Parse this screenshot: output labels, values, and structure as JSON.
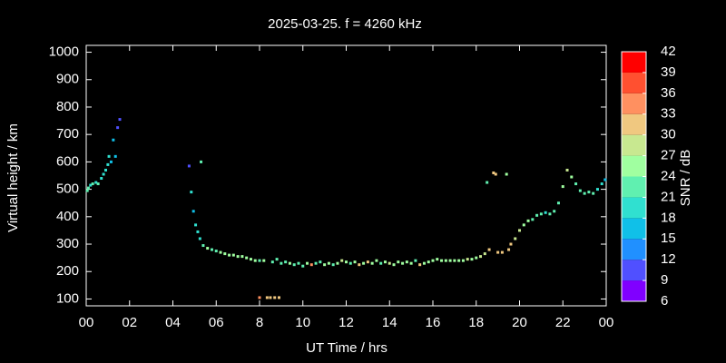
{
  "chart_data": {
    "type": "scatter",
    "title": "2025-03-25. f = 4260 kHz",
    "xlabel": "UT Time / hrs",
    "ylabel": "Virtual height / km",
    "colorbar_label": "SNR / dB",
    "xlim": [
      0,
      24
    ],
    "ylim": [
      75,
      1025
    ],
    "xticks": [
      {
        "value": 0,
        "label": "00"
      },
      {
        "value": 2,
        "label": "02"
      },
      {
        "value": 4,
        "label": "04"
      },
      {
        "value": 6,
        "label": "06"
      },
      8,
      10,
      12,
      14,
      16,
      18,
      20,
      22,
      {
        "value": 24,
        "label": "00"
      }
    ],
    "yticks": [
      100,
      200,
      300,
      400,
      500,
      600,
      700,
      800,
      900,
      1000
    ],
    "clim": [
      6,
      42
    ],
    "cticks": [
      6,
      9,
      12,
      15,
      18,
      21,
      24,
      27,
      30,
      33,
      36,
      39,
      42
    ],
    "colors": [
      "#8000ff",
      "#5050ff",
      "#2090ff",
      "#10c0e8",
      "#30e0d0",
      "#60f0b0",
      "#a0ffa0",
      "#c8e890",
      "#f0c880",
      "#ff9060",
      "#ff5030",
      "#ff0000"
    ],
    "series": [
      {
        "name": "SNR / dB",
        "x": [
          0.05,
          0.1,
          0.2,
          0.3,
          0.45,
          0.55,
          0.7,
          0.8,
          0.9,
          1.0,
          1.05,
          1.15,
          1.25,
          1.35,
          1.45,
          1.55,
          4.75,
          4.85,
          4.95,
          5.05,
          5.15,
          5.25,
          5.3,
          5.4,
          5.6,
          5.8,
          6.0,
          6.2,
          6.4,
          6.6,
          6.8,
          7.0,
          7.2,
          7.4,
          7.6,
          7.8,
          8.0,
          8.2,
          8.0,
          8.35,
          8.5,
          8.7,
          8.9,
          8.6,
          8.8,
          9.0,
          9.2,
          9.4,
          9.6,
          9.8,
          10.0,
          10.2,
          10.4,
          10.6,
          10.8,
          11.0,
          11.2,
          11.4,
          11.6,
          11.8,
          12.0,
          12.2,
          12.4,
          12.6,
          12.8,
          13.0,
          13.2,
          13.4,
          13.6,
          13.8,
          14.0,
          14.2,
          14.4,
          14.6,
          14.8,
          15.0,
          15.2,
          15.4,
          15.6,
          15.8,
          16.0,
          16.2,
          16.4,
          16.6,
          16.8,
          17.0,
          17.2,
          17.4,
          17.6,
          17.8,
          18.0,
          18.2,
          18.4,
          18.6,
          18.5,
          18.8,
          18.9,
          19.0,
          19.2,
          19.4,
          19.5,
          19.6,
          19.8,
          20.0,
          20.2,
          20.4,
          20.6,
          20.8,
          21.0,
          21.2,
          21.4,
          21.6,
          21.8,
          22.0,
          22.2,
          22.4,
          22.6,
          22.8,
          23.0,
          23.2,
          23.4,
          23.6,
          23.8,
          23.95
        ],
        "values": [
          495,
          505,
          515,
          520,
          525,
          520,
          540,
          555,
          570,
          590,
          620,
          600,
          680,
          620,
          725,
          755,
          585,
          490,
          420,
          370,
          345,
          320,
          600,
          295,
          285,
          280,
          275,
          270,
          265,
          260,
          260,
          255,
          255,
          250,
          245,
          240,
          240,
          240,
          105,
          105,
          105,
          105,
          105,
          235,
          245,
          230,
          235,
          230,
          225,
          230,
          220,
          230,
          225,
          230,
          235,
          225,
          230,
          225,
          230,
          240,
          235,
          230,
          235,
          225,
          230,
          235,
          230,
          240,
          230,
          235,
          230,
          225,
          235,
          230,
          235,
          230,
          240,
          225,
          230,
          235,
          240,
          245,
          240,
          240,
          240,
          240,
          240,
          240,
          245,
          245,
          250,
          255,
          265,
          280,
          525,
          560,
          555,
          270,
          270,
          555,
          280,
          300,
          320,
          350,
          370,
          385,
          390,
          405,
          410,
          415,
          410,
          420,
          450,
          510,
          570,
          545,
          520,
          495,
          485,
          490,
          485,
          500,
          520,
          535
        ],
        "snr": [
          21,
          21,
          20,
          21,
          20,
          21,
          20,
          20,
          18,
          19,
          18,
          17,
          16,
          16,
          11,
          10,
          10,
          20,
          17,
          20,
          20,
          20,
          22,
          23,
          24,
          23,
          22,
          24,
          25,
          24,
          25,
          26,
          25,
          24,
          25,
          24,
          23,
          25,
          33,
          32,
          31,
          30,
          31,
          23,
          22,
          23,
          22,
          24,
          23,
          22,
          23,
          24,
          33,
          22,
          23,
          24,
          25,
          23,
          24,
          27,
          25,
          23,
          24,
          31,
          25,
          32,
          24,
          25,
          23,
          24,
          28,
          25,
          24,
          25,
          26,
          24,
          23,
          32,
          24,
          25,
          24,
          26,
          25,
          24,
          25,
          24,
          26,
          25,
          27,
          26,
          25,
          27,
          29,
          31,
          22,
          31,
          30,
          30,
          31,
          24,
          31,
          30,
          29,
          27,
          26,
          24,
          23,
          22,
          21,
          20,
          21,
          22,
          23,
          24,
          27,
          24,
          23,
          22,
          23,
          22,
          21,
          20,
          18,
          17
        ]
      }
    ]
  }
}
